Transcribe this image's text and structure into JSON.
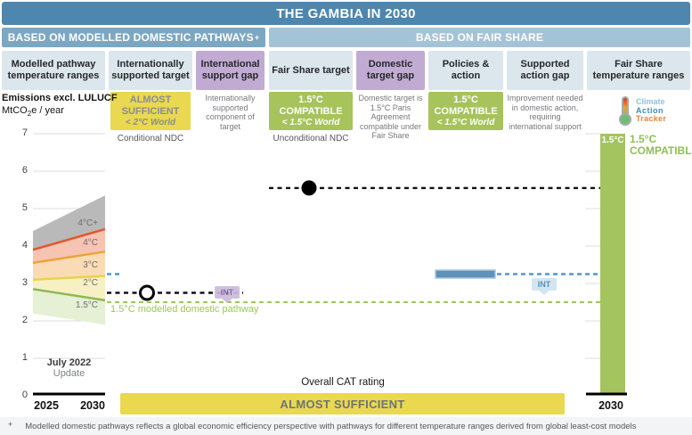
{
  "title": "THE GAMBIA IN 2030",
  "sections": {
    "left": {
      "label": "BASED ON MODELLED DOMESTIC PATHWAYS",
      "footnote_marker": "+"
    },
    "right": {
      "label": "BASED ON FAIR SHARE"
    }
  },
  "columns": [
    {
      "label": "Modelled pathway temperature ranges",
      "style": "blue"
    },
    {
      "label": "Internationally supported target",
      "style": "blue"
    },
    {
      "label": "International support gap",
      "style": "purple"
    },
    {
      "label": "Fair Share target",
      "style": "blue"
    },
    {
      "label": "Domestic target gap",
      "style": "purple"
    },
    {
      "label": "Policies & action",
      "style": "blue"
    },
    {
      "label": "Supported action gap",
      "style": "blue"
    },
    {
      "label": "Fair Share temperature ranges",
      "style": "blue"
    }
  ],
  "ratings": {
    "internationally_supported_target": {
      "rating": "ALMOST SUFFICIENT",
      "world": "< 2°C World",
      "sub": "Conditional NDC"
    },
    "international_support_gap_note": "Internationally supported component of target",
    "fair_share_target": {
      "rating": "1.5°C COMPATIBLE",
      "world": "< 1.5°C World",
      "sub": "Unconditional NDC"
    },
    "domestic_target_gap_note": "Domestic target is 1.5°C Paris Agreement compatible under Fair Share",
    "policies_action": {
      "rating": "1.5°C COMPATIBLE",
      "world": "< 1.5°C World"
    },
    "supported_action_gap_note": "Improvement needed in domestic action, requiring international support"
  },
  "logo": {
    "line1": "Climate",
    "line2": "Action",
    "line3": "Tracker"
  },
  "axis": {
    "label_bold": "Emissions excl. LULUCF",
    "unit_prefix": "MtCO",
    "unit_sub": "2",
    "unit_suffix": "e / year",
    "yticks": [
      7,
      6,
      5,
      4,
      3,
      2,
      1,
      0
    ],
    "x_left_start": "2025",
    "x_left_end": "2030",
    "x_right": "2030",
    "update_line1": "July 2022",
    "update_line2": "Update"
  },
  "annotations": {
    "pathway_line_label": "1.5°C modelled domestic pathway",
    "int_label": "INT",
    "overall_rating_title": "Overall CAT rating",
    "overall_rating": "ALMOST SUFFICIENT",
    "fair_share_bar_label": "1.5°C",
    "fair_share_bar_side_line1": "1.5°C",
    "fair_share_bar_side_line2": "COMPATIBLE"
  },
  "footnote": {
    "marker": "+",
    "text": "Modelled domestic pathways reflects a global economic efficiency perspective with pathways for different temperature ranges derived from global least-cost models"
  },
  "colors": {
    "title_bar": "#4d86ae",
    "section_left": "#7ca7c3",
    "section_right": "#a5c3d7",
    "header_blue": "#dce6ed",
    "header_purple": "#c1abd3",
    "rating_yellow": "#e9d850",
    "rating_green": "#a6c35c",
    "fair_share_bar_green": "#a4c45f",
    "policies_blue": "#5e92bb",
    "int_badge_purple": "#cbbcdc",
    "int_badge_blue": "#cfe3f1"
  },
  "chart_data": {
    "type": "area",
    "title": "THE GAMBIA IN 2030",
    "ylabel": "Emissions excl. LULUCF MtCO2e / year",
    "ylim": [
      0,
      7
    ],
    "yticks": [
      0,
      1,
      2,
      3,
      4,
      5,
      6,
      7
    ],
    "x_years": [
      "2025",
      "2030"
    ],
    "grid": true,
    "bands": [
      {
        "label": "4°C+",
        "y2025_range": [
          3.9,
          4.4
        ],
        "y2030_range": [
          4.45,
          5.35
        ],
        "fill": "#b9b9b9",
        "line_below": "#e2552f",
        "label_v": 4.6
      },
      {
        "label": "4°C",
        "y2025_range": [
          3.55,
          3.9
        ],
        "y2030_range": [
          3.85,
          4.45
        ],
        "fill": "#f6c4b1",
        "line_below": "#eda23b",
        "label_v": 4.07
      },
      {
        "label": "3°C",
        "y2025_range": [
          3.1,
          3.55
        ],
        "y2030_range": [
          3.2,
          3.85
        ],
        "fill": "#fadbb5",
        "line_below": "#e5d44a",
        "label_v": 3.48
      },
      {
        "label": "2°C",
        "y2025_range": [
          2.85,
          3.1
        ],
        "y2030_range": [
          2.55,
          3.2
        ],
        "fill": "#f8f0c5",
        "line_below": "#8cba50",
        "label_v": 3.0
      },
      {
        "label": "1.5°C",
        "y2025_range": [
          2.2,
          2.85
        ],
        "y2030_range": [
          1.9,
          2.55
        ],
        "fill": "#e5f0d4",
        "line_below": null,
        "label_v": 2.4
      }
    ],
    "markers": {
      "internationally_supported_target": {
        "value": 2.75,
        "style": "open-circle-black-dashed"
      },
      "fair_share_target": {
        "value": 5.55,
        "style": "filled-circle-black-dashed"
      },
      "policies_action_level": {
        "value": 3.25,
        "style": "blue-bar-with-dashes"
      },
      "modelled_domestic_pathway_1p5": {
        "value": 2.5,
        "style": "green-dashed"
      }
    },
    "fair_share_bar": {
      "label": "1.5°C",
      "range": [
        0,
        7
      ],
      "x": "2030"
    }
  }
}
